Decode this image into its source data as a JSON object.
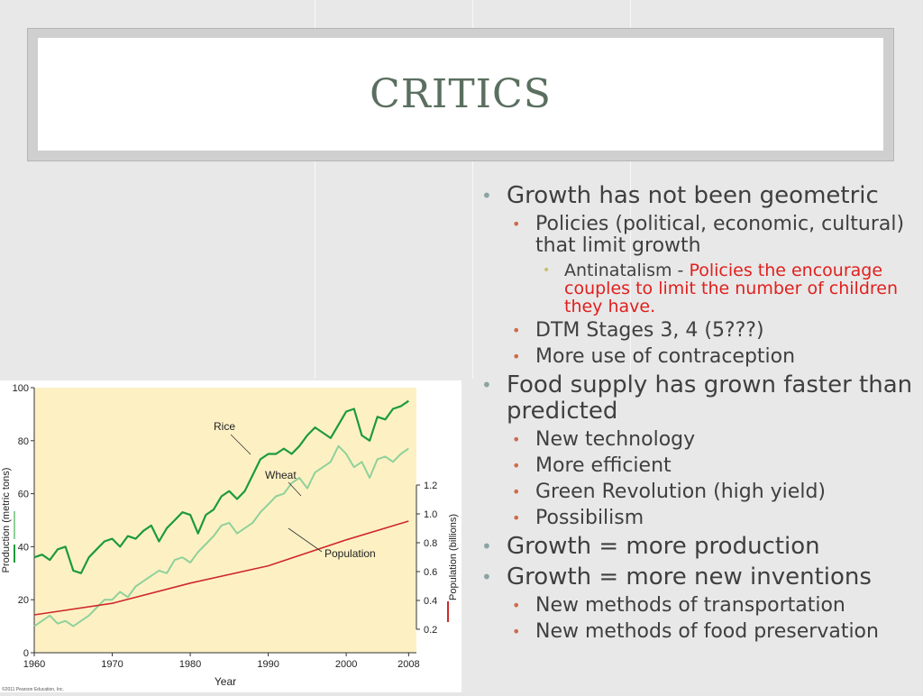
{
  "slide": {
    "title": "CRITICS"
  },
  "bullets": [
    {
      "level": 1,
      "text": "Growth has not been geometric"
    },
    {
      "level": 2,
      "text": "Policies (political, economic, cultural) that limit growth"
    },
    {
      "level": 3,
      "text": "Antinatalism - ",
      "highlight": "Policies the encourage couples to limit the number of children they have."
    },
    {
      "level": 2,
      "text": "DTM Stages 3, 4 (5???)"
    },
    {
      "level": 2,
      "text": "More use of contraception"
    },
    {
      "level": 1,
      "text": "Food supply has grown faster than predicted"
    },
    {
      "level": 2,
      "text": "New technology"
    },
    {
      "level": 2,
      "text": "More efficient"
    },
    {
      "level": 2,
      "text": "Green Revolution (high yield)"
    },
    {
      "level": 2,
      "text": "Possibilism"
    },
    {
      "level": 1,
      "text": "Growth = more production"
    },
    {
      "level": 1,
      "text": "Growth = more new inventions"
    },
    {
      "level": 2,
      "text": "New methods of transportation"
    },
    {
      "level": 2,
      "text": "New methods of food preservation"
    }
  ],
  "chart_data": {
    "type": "line",
    "xlabel": "Year",
    "ylabel_left": "Production (metric tons)",
    "ylabel_right": "Population (billions)",
    "x_ticks": [
      1960,
      1970,
      1980,
      1990,
      2000,
      2008
    ],
    "y_left_ticks": [
      0,
      20,
      40,
      60,
      80,
      100
    ],
    "y_right_ticks": [
      0.2,
      0.4,
      0.6,
      0.8,
      1.0,
      1.2
    ],
    "xlim": [
      1960,
      2009
    ],
    "ylim_left": [
      0,
      100
    ],
    "credit": "©2011 Pearson Education, Inc.",
    "colors": {
      "plot_bg": "#fdf1c4",
      "rice": "#1d9a3c",
      "wheat": "#8fd19a",
      "population": "#cf2a2a"
    },
    "series": [
      {
        "name": "Rice",
        "axis": "left",
        "x": [
          1960,
          1961,
          1962,
          1963,
          1964,
          1965,
          1966,
          1967,
          1968,
          1969,
          1970,
          1971,
          1972,
          1973,
          1974,
          1975,
          1976,
          1977,
          1978,
          1979,
          1980,
          1981,
          1982,
          1983,
          1984,
          1985,
          1986,
          1987,
          1988,
          1989,
          1990,
          1991,
          1992,
          1993,
          1994,
          1995,
          1996,
          1997,
          1998,
          1999,
          2000,
          2001,
          2002,
          2003,
          2004,
          2005,
          2006,
          2007,
          2008
        ],
        "values": [
          36,
          37,
          35,
          39,
          40,
          31,
          30,
          36,
          39,
          42,
          43,
          40,
          44,
          43,
          46,
          48,
          42,
          47,
          50,
          53,
          52,
          45,
          52,
          54,
          59,
          61,
          58,
          61,
          67,
          73,
          75,
          75,
          77,
          75,
          78,
          82,
          85,
          83,
          81,
          86,
          91,
          92,
          82,
          80,
          89,
          88,
          92,
          93,
          95
        ]
      },
      {
        "name": "Wheat",
        "axis": "left",
        "x": [
          1960,
          1961,
          1962,
          1963,
          1964,
          1965,
          1966,
          1967,
          1968,
          1969,
          1970,
          1971,
          1972,
          1973,
          1974,
          1975,
          1976,
          1977,
          1978,
          1979,
          1980,
          1981,
          1982,
          1983,
          1984,
          1985,
          1986,
          1987,
          1988,
          1989,
          1990,
          1991,
          1992,
          1993,
          1994,
          1995,
          1996,
          1997,
          1998,
          1999,
          2000,
          2001,
          2002,
          2003,
          2004,
          2005,
          2006,
          2007,
          2008
        ],
        "values": [
          10,
          12,
          14,
          11,
          12,
          10,
          12,
          14,
          17,
          20,
          20,
          23,
          21,
          25,
          27,
          29,
          31,
          30,
          35,
          36,
          34,
          38,
          41,
          44,
          48,
          49,
          45,
          47,
          49,
          53,
          56,
          59,
          60,
          64,
          66,
          62,
          68,
          70,
          72,
          78,
          75,
          70,
          72,
          66,
          73,
          74,
          72,
          75,
          77
        ]
      },
      {
        "name": "Population",
        "axis": "right",
        "x": [
          1960,
          1970,
          1980,
          1990,
          2000,
          2008
        ],
        "values": [
          0.3,
          0.38,
          0.52,
          0.64,
          0.82,
          0.95
        ]
      }
    ]
  }
}
